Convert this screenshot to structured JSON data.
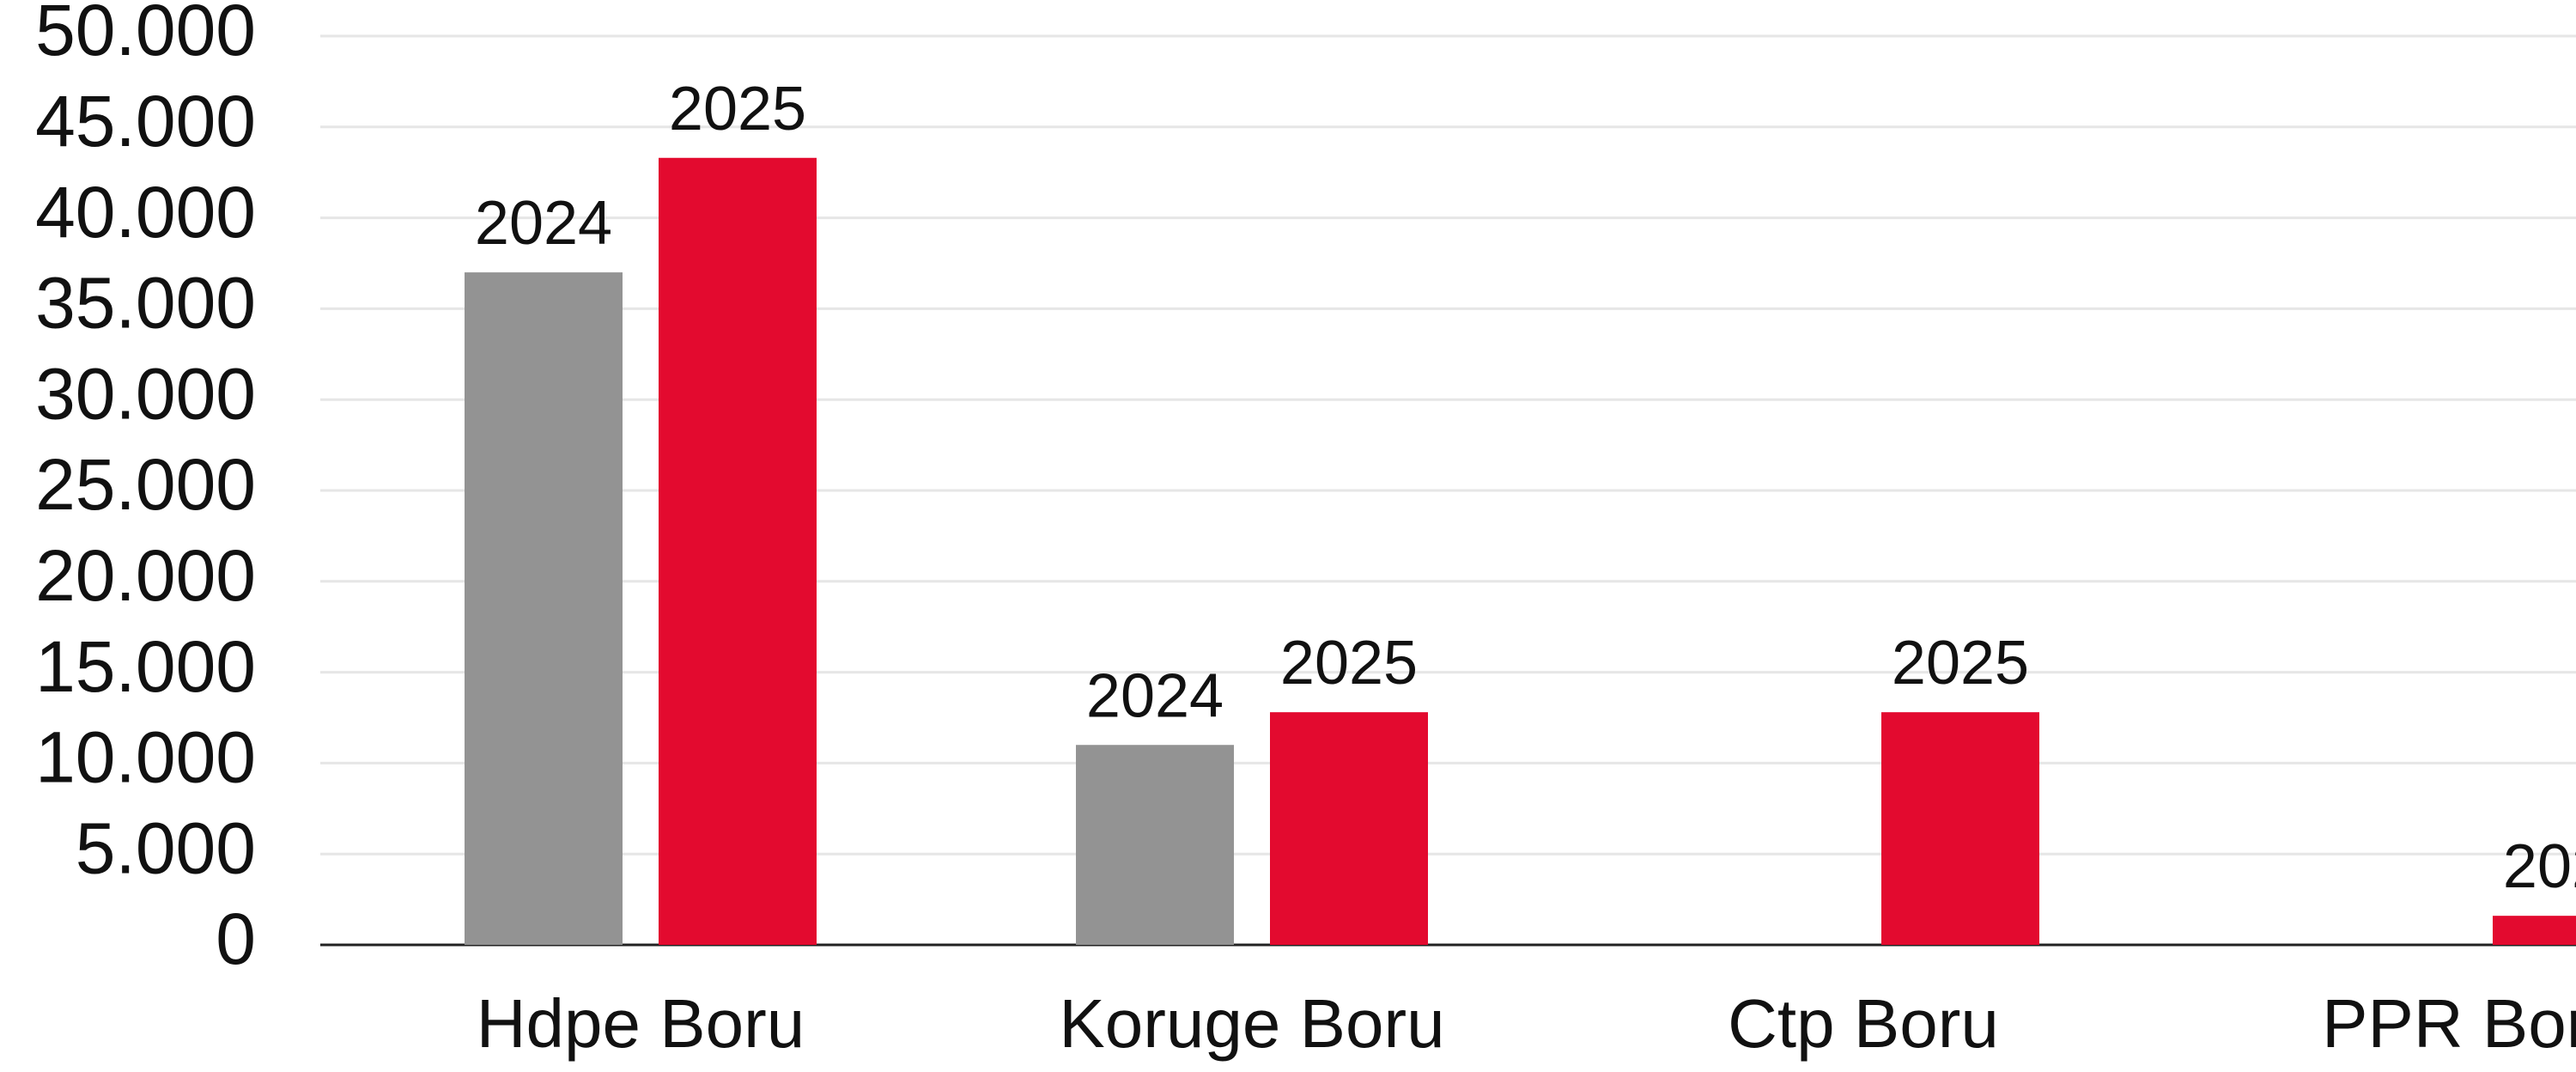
{
  "chart_data": {
    "type": "bar",
    "categories": [
      "Hdpe Boru",
      "Koruge Boru",
      "Ctp Boru",
      "PPR Boru"
    ],
    "series": [
      {
        "name": "2024",
        "color": "#939393",
        "values": [
          37000,
          11000,
          null,
          null
        ]
      },
      {
        "name": "2025",
        "color": "#e30a2f",
        "values": [
          43300,
          12800,
          12800,
          1600
        ]
      }
    ],
    "ylim": [
      0,
      50000
    ],
    "yticks": [
      0,
      {
        "value": 5000,
        "label": "5.000"
      },
      {
        "value": 10000,
        "label": "10.000"
      },
      {
        "value": 15000,
        "label": "15.000"
      },
      {
        "value": 20000,
        "label": "20.000"
      },
      {
        "value": 25000,
        "label": "25.000"
      },
      {
        "value": 30000,
        "label": "30.000"
      },
      {
        "value": 35000,
        "label": "35.000"
      },
      {
        "value": 40000,
        "label": "40.000"
      },
      {
        "value": 45000,
        "label": "45.000"
      },
      {
        "value": 50000,
        "label": "50.000"
      }
    ],
    "grid": true
  }
}
